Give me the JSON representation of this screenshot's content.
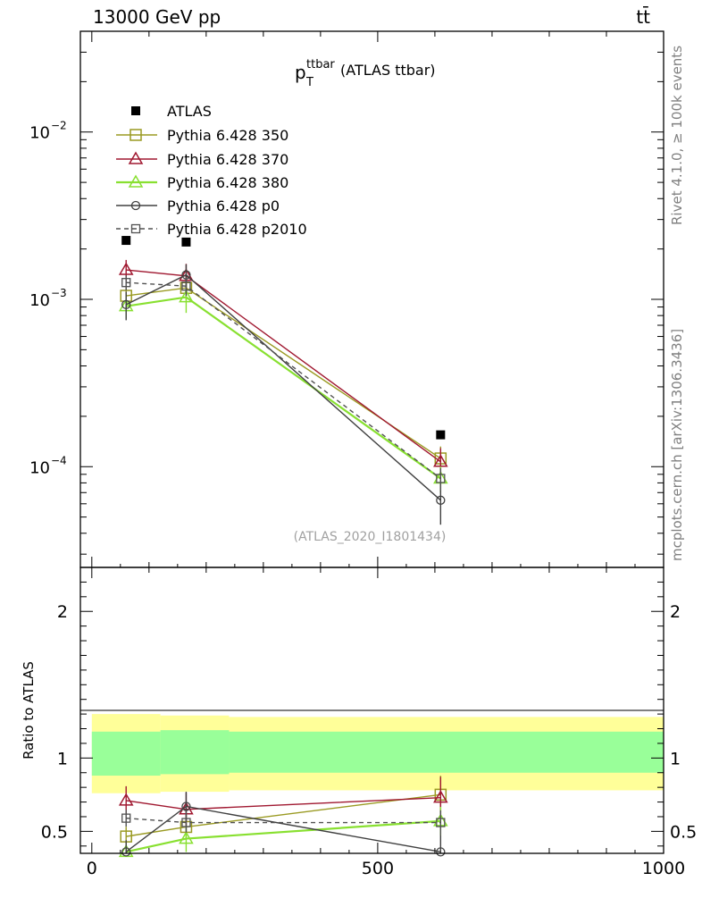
{
  "header": {
    "left": "13000 GeV pp",
    "right": "tt̄",
    "side_top": "Rivet 4.1.0, ≥ 100k events",
    "side_bottom": "mcplots.cern.ch [arXiv:1306.3436]"
  },
  "chart_data": {
    "type": "line",
    "title_main": "p",
    "title_sup": "ttbar",
    "title_sub": "T",
    "title_rest": "(ATLAS ttbar)",
    "watermark": "(ATLAS_2020_I1801434)",
    "x": {
      "range": [
        -20,
        1000
      ],
      "ticks": [
        0,
        500,
        1000
      ],
      "tick_labels": [
        "0",
        "500",
        "1000"
      ],
      "bins": [
        [
          0,
          120
        ],
        [
          120,
          240
        ],
        [
          240,
          1000
        ]
      ],
      "centers": [
        60,
        165,
        610
      ]
    },
    "main_panel": {
      "yscale": "log",
      "yrange": [
        2.5e-05,
        0.04
      ],
      "tick_labels": [
        {
          "value": 0.01,
          "mantissa": "10",
          "exp": "−2"
        },
        {
          "value": 0.001,
          "mantissa": "10",
          "exp": "−3"
        },
        {
          "value": 0.0001,
          "mantissa": "10",
          "exp": "−4"
        }
      ],
      "atlas": [
        0.00225,
        0.0022,
        0.000155
      ]
    },
    "ratio_panel": {
      "ylabel": "Ratio to ATLAS",
      "yrange": [
        0.35,
        2.3
      ],
      "tick_labels": [
        "0.5",
        "1",
        "2"
      ],
      "tick_values": [
        0.5,
        1,
        2
      ],
      "band_inner": [
        [
          0.88,
          1.18
        ],
        [
          0.89,
          1.19
        ],
        [
          0.9,
          1.18
        ]
      ],
      "band_outer": [
        [
          0.76,
          1.3
        ],
        [
          0.77,
          1.29
        ],
        [
          0.78,
          1.28
        ]
      ]
    },
    "legend": {
      "position": "top-left",
      "data_label": "ATLAS"
    },
    "series": [
      {
        "name": "Pythia 6.428 350",
        "color": "#9a9a22",
        "marker": "square",
        "dash": false,
        "values": [
          0.00105,
          0.00117,
          0.000112
        ],
        "errors": [
          0.00015,
          0.00018,
          2e-05
        ],
        "ratio": [
          0.465,
          0.53,
          0.75
        ]
      },
      {
        "name": "Pythia 6.428 370",
        "color": "#a01830",
        "marker": "triangle",
        "dash": false,
        "values": [
          0.0015,
          0.00138,
          0.000107
        ],
        "errors": [
          0.00022,
          0.00025,
          2.2e-05
        ],
        "ratio": [
          0.71,
          0.65,
          0.73
        ]
      },
      {
        "name": "Pythia 6.428 380",
        "color": "#88e030",
        "marker": "triangle",
        "dash": false,
        "values": [
          0.00091,
          0.00103,
          8.5e-05
        ],
        "errors": [
          0.00014,
          0.0002,
          1.5e-05
        ],
        "ratio": [
          0.36,
          0.45,
          0.57
        ]
      },
      {
        "name": "Pythia 6.428 p0",
        "color": "#404040",
        "marker": "circle",
        "dash": false,
        "values": [
          0.00093,
          0.0014,
          6.3e-05
        ],
        "errors": [
          0.00018,
          0.00022,
          1.8e-05
        ],
        "ratio": [
          0.36,
          0.67,
          0.36
        ]
      },
      {
        "name": "Pythia 6.428 p2010",
        "color": "#505050",
        "marker": "square-small",
        "dash": true,
        "values": [
          0.00126,
          0.0012,
          8.5e-05
        ],
        "errors": [
          0.00013,
          0.00015,
          1.3e-05
        ],
        "ratio": [
          0.59,
          0.56,
          0.56
        ]
      }
    ]
  }
}
